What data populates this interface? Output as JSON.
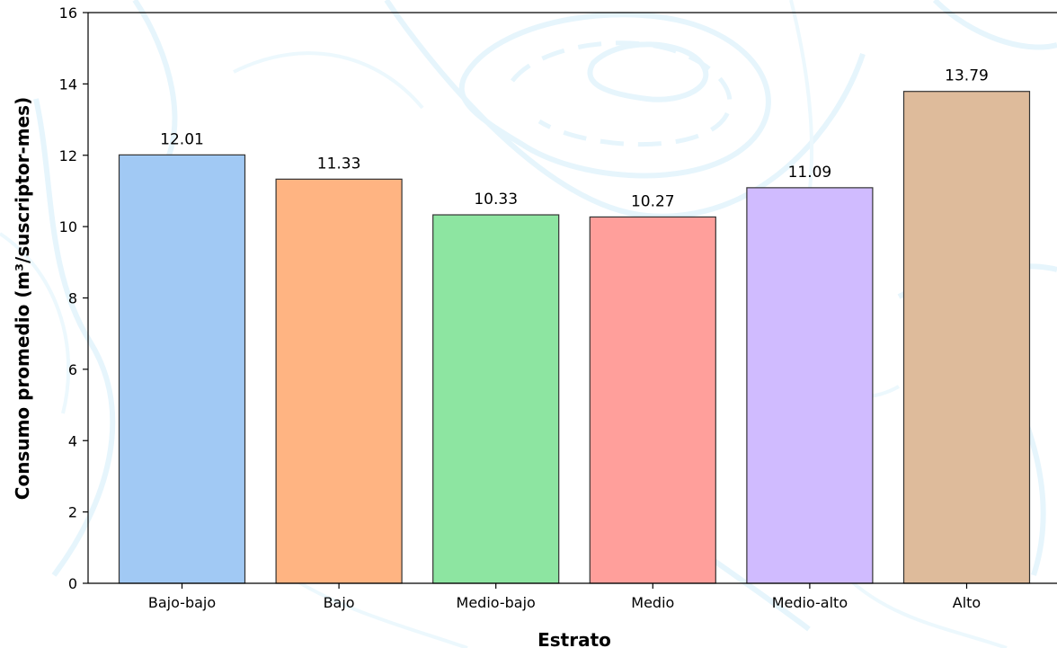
{
  "chart_data": {
    "type": "bar",
    "title": "",
    "xlabel": "Estrato",
    "ylabel": "Consumo promedio (m³/suscriptor-mes)",
    "categories": [
      "Bajo-bajo",
      "Bajo",
      "Medio-bajo",
      "Medio",
      "Medio-alto",
      "Alto"
    ],
    "values": [
      12.01,
      11.33,
      10.33,
      10.27,
      11.09,
      13.79
    ],
    "value_labels": [
      "12.01",
      "11.33",
      "10.33",
      "10.27",
      "11.09",
      "13.79"
    ],
    "colors": [
      "#a1c9f4",
      "#ffb482",
      "#8de5a1",
      "#ff9f9b",
      "#d0bbff",
      "#debb9b"
    ],
    "ylim": [
      0,
      16
    ],
    "yticks": [
      0,
      2,
      4,
      6,
      8,
      10,
      12,
      14,
      16
    ],
    "ytick_labels": [
      "0",
      "2",
      "4",
      "6",
      "8",
      "10",
      "12",
      "14",
      "16"
    ],
    "grid": false,
    "legend": "none",
    "edge_color": "#333333",
    "background_decoration": "light-blue contour lines"
  }
}
